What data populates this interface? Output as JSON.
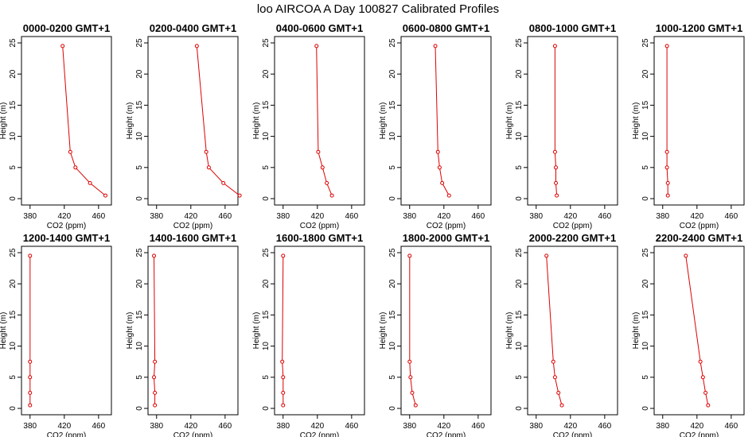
{
  "figure": {
    "title": "loo AIRCOA A  Day 100827  Calibrated Profiles"
  },
  "chart_data": [
    {
      "type": "line",
      "title": "0000-0200 GMT+1",
      "xlabel": "CO2 (ppm)",
      "ylabel": "Height (m)",
      "xlim": [
        370,
        475
      ],
      "ylim": [
        0,
        25
      ],
      "x_ticks": [
        380,
        420,
        460
      ],
      "y_ticks": [
        0,
        5,
        10,
        15,
        20,
        25
      ],
      "grid": false,
      "color": "#dd0000",
      "points": [
        {
          "x": 468,
          "y": 0.5
        },
        {
          "x": 450,
          "y": 2.5
        },
        {
          "x": 433,
          "y": 5
        },
        {
          "x": 427,
          "y": 7.5
        },
        {
          "x": 418,
          "y": 24.5
        }
      ]
    },
    {
      "type": "line",
      "title": "0200-0400 GMT+1",
      "xlabel": "CO2 (ppm)",
      "ylabel": "Height (m)",
      "xlim": [
        370,
        475
      ],
      "ylim": [
        0,
        25
      ],
      "x_ticks": [
        380,
        420,
        460
      ],
      "y_ticks": [
        0,
        5,
        10,
        15,
        20,
        25
      ],
      "grid": false,
      "color": "#dd0000",
      "points": [
        {
          "x": 477,
          "y": 0.5
        },
        {
          "x": 458,
          "y": 2.5
        },
        {
          "x": 441,
          "y": 5
        },
        {
          "x": 438,
          "y": 7.5
        },
        {
          "x": 427,
          "y": 24.5
        }
      ]
    },
    {
      "type": "line",
      "title": "0400-0600 GMT+1",
      "xlabel": "CO2 (ppm)",
      "ylabel": "Height (m)",
      "xlim": [
        370,
        475
      ],
      "ylim": [
        0,
        25
      ],
      "x_ticks": [
        380,
        420,
        460
      ],
      "y_ticks": [
        0,
        5,
        10,
        15,
        20,
        25
      ],
      "grid": false,
      "color": "#dd0000",
      "points": [
        {
          "x": 437,
          "y": 0.5
        },
        {
          "x": 431,
          "y": 2.5
        },
        {
          "x": 426,
          "y": 5
        },
        {
          "x": 421,
          "y": 7.5
        },
        {
          "x": 419,
          "y": 24.5
        }
      ]
    },
    {
      "type": "line",
      "title": "0600-0800 GMT+1",
      "xlabel": "CO2 (ppm)",
      "ylabel": "Height (m)",
      "xlim": [
        370,
        475
      ],
      "ylim": [
        0,
        25
      ],
      "x_ticks": [
        380,
        420,
        460
      ],
      "y_ticks": [
        0,
        5,
        10,
        15,
        20,
        25
      ],
      "grid": false,
      "color": "#dd0000",
      "points": [
        {
          "x": 426,
          "y": 0.5
        },
        {
          "x": 418,
          "y": 2.5
        },
        {
          "x": 415,
          "y": 5
        },
        {
          "x": 413,
          "y": 7.5
        },
        {
          "x": 410,
          "y": 24.5
        }
      ]
    },
    {
      "type": "line",
      "title": "0800-1000 GMT+1",
      "xlabel": "CO2 (ppm)",
      "ylabel": "Height (m)",
      "xlim": [
        370,
        475
      ],
      "ylim": [
        0,
        25
      ],
      "x_ticks": [
        380,
        420,
        460
      ],
      "y_ticks": [
        0,
        5,
        10,
        15,
        20,
        25
      ],
      "grid": false,
      "color": "#dd0000",
      "points": [
        {
          "x": 404,
          "y": 0.5
        },
        {
          "x": 403,
          "y": 2.5
        },
        {
          "x": 403,
          "y": 5
        },
        {
          "x": 402,
          "y": 7.5
        },
        {
          "x": 402,
          "y": 24.5
        }
      ]
    },
    {
      "type": "line",
      "title": "1000-1200 GMT+1",
      "xlabel": "CO2 (ppm)",
      "ylabel": "Height (m)",
      "xlim": [
        370,
        475
      ],
      "ylim": [
        0,
        25
      ],
      "x_ticks": [
        380,
        420,
        460
      ],
      "y_ticks": [
        0,
        5,
        10,
        15,
        20,
        25
      ],
      "grid": false,
      "color": "#dd0000",
      "points": [
        {
          "x": 386,
          "y": 0.5
        },
        {
          "x": 386,
          "y": 2.5
        },
        {
          "x": 385,
          "y": 5
        },
        {
          "x": 385,
          "y": 7.5
        },
        {
          "x": 385,
          "y": 24.5
        }
      ]
    },
    {
      "type": "line",
      "title": "1200-1400 GMT+1",
      "xlabel": "CO2 (ppm)",
      "ylabel": "Height (m)",
      "xlim": [
        370,
        475
      ],
      "ylim": [
        0,
        25
      ],
      "x_ticks": [
        380,
        420,
        460
      ],
      "y_ticks": [
        0,
        5,
        10,
        15,
        20,
        25
      ],
      "grid": false,
      "color": "#dd0000",
      "points": [
        {
          "x": 380,
          "y": 0.5
        },
        {
          "x": 380,
          "y": 2.5
        },
        {
          "x": 380,
          "y": 5
        },
        {
          "x": 380,
          "y": 7.5
        },
        {
          "x": 380,
          "y": 24.5
        }
      ]
    },
    {
      "type": "line",
      "title": "1400-1600 GMT+1",
      "xlabel": "CO2 (ppm)",
      "ylabel": "Height (m)",
      "xlim": [
        370,
        475
      ],
      "ylim": [
        0,
        25
      ],
      "x_ticks": [
        380,
        420,
        460
      ],
      "y_ticks": [
        0,
        5,
        10,
        15,
        20,
        25
      ],
      "grid": false,
      "color": "#dd0000",
      "points": [
        {
          "x": 378,
          "y": 0.5
        },
        {
          "x": 378,
          "y": 2.5
        },
        {
          "x": 377,
          "y": 5
        },
        {
          "x": 378,
          "y": 7.5
        },
        {
          "x": 377,
          "y": 24.5
        }
      ]
    },
    {
      "type": "line",
      "title": "1600-1800 GMT+1",
      "xlabel": "CO2 (ppm)",
      "ylabel": "Height (m)",
      "xlim": [
        370,
        475
      ],
      "ylim": [
        0,
        25
      ],
      "x_ticks": [
        380,
        420,
        460
      ],
      "y_ticks": [
        0,
        5,
        10,
        15,
        20,
        25
      ],
      "grid": false,
      "color": "#dd0000",
      "points": [
        {
          "x": 380,
          "y": 0.5
        },
        {
          "x": 380,
          "y": 2.5
        },
        {
          "x": 380,
          "y": 5
        },
        {
          "x": 379,
          "y": 7.5
        },
        {
          "x": 380,
          "y": 24.5
        }
      ]
    },
    {
      "type": "line",
      "title": "1800-2000 GMT+1",
      "xlabel": "CO2 (ppm)",
      "ylabel": "Height (m)",
      "xlim": [
        370,
        475
      ],
      "ylim": [
        0,
        25
      ],
      "x_ticks": [
        380,
        420,
        460
      ],
      "y_ticks": [
        0,
        5,
        10,
        15,
        20,
        25
      ],
      "grid": false,
      "color": "#dd0000",
      "points": [
        {
          "x": 387,
          "y": 0.5
        },
        {
          "x": 383,
          "y": 2.5
        },
        {
          "x": 381,
          "y": 5
        },
        {
          "x": 380,
          "y": 7.5
        },
        {
          "x": 380,
          "y": 24.5
        }
      ]
    },
    {
      "type": "line",
      "title": "2000-2200 GMT+1",
      "xlabel": "CO2 (ppm)",
      "ylabel": "Height (m)",
      "xlim": [
        370,
        475
      ],
      "ylim": [
        0,
        25
      ],
      "x_ticks": [
        380,
        420,
        460
      ],
      "y_ticks": [
        0,
        5,
        10,
        15,
        20,
        25
      ],
      "grid": false,
      "color": "#dd0000",
      "points": [
        {
          "x": 410,
          "y": 0.5
        },
        {
          "x": 406,
          "y": 2.5
        },
        {
          "x": 402,
          "y": 5
        },
        {
          "x": 400,
          "y": 7.5
        },
        {
          "x": 392,
          "y": 24.5
        }
      ]
    },
    {
      "type": "line",
      "title": "2200-2400 GMT+1",
      "xlabel": "CO2 (ppm)",
      "ylabel": "Height (m)",
      "xlim": [
        370,
        475
      ],
      "ylim": [
        0,
        25
      ],
      "x_ticks": [
        380,
        420,
        460
      ],
      "y_ticks": [
        0,
        5,
        10,
        15,
        20,
        25
      ],
      "grid": false,
      "color": "#dd0000",
      "points": [
        {
          "x": 433,
          "y": 0.5
        },
        {
          "x": 430,
          "y": 2.5
        },
        {
          "x": 427,
          "y": 5
        },
        {
          "x": 424,
          "y": 7.5
        },
        {
          "x": 407,
          "y": 24.5
        }
      ]
    }
  ]
}
